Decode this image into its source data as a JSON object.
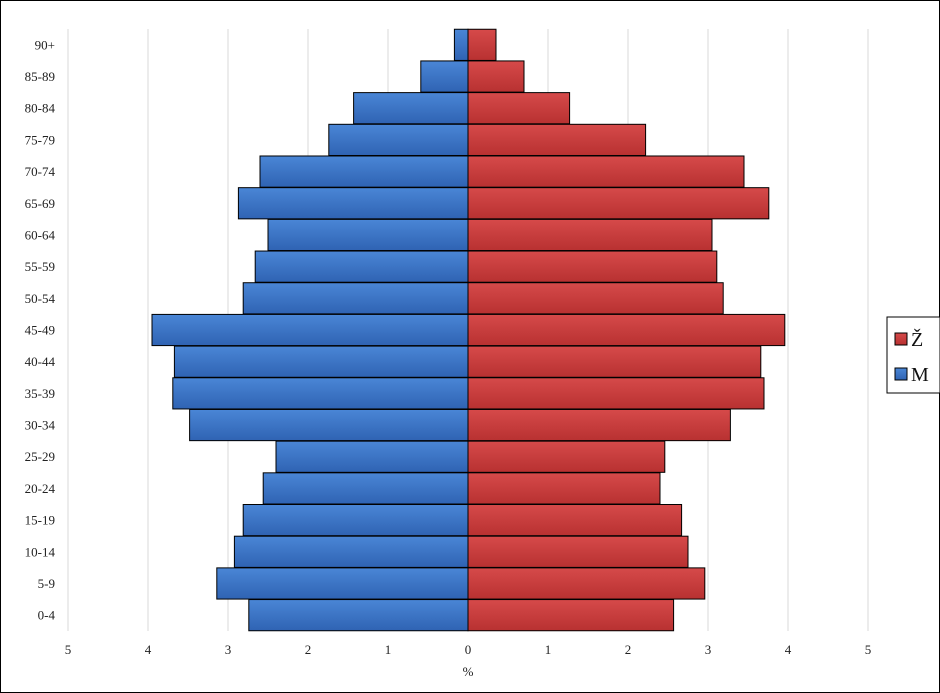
{
  "chart_data": {
    "type": "bar",
    "orientation": "horizontal",
    "subtype": "population-pyramid",
    "title": "",
    "xlabel": "%",
    "ylabel": "",
    "xlim": [
      -5,
      5
    ],
    "x_ticks": [
      -5,
      -4,
      -3,
      -2,
      -1,
      0,
      1,
      2,
      3,
      4,
      5
    ],
    "x_tick_labels": [
      "5",
      "4",
      "3",
      "2",
      "1",
      "0",
      "1",
      "2",
      "3",
      "4",
      "5"
    ],
    "categories": [
      "0-4",
      "5-9",
      "10-14",
      "15-19",
      "20-24",
      "25-29",
      "30-34",
      "35-39",
      "40-44",
      "45-49",
      "50-54",
      "55-59",
      "60-64",
      "65-69",
      "70-74",
      "75-79",
      "80-84",
      "85-89",
      "90+"
    ],
    "series": [
      {
        "name": "M",
        "side": "left",
        "color": "#3A72C4",
        "values": [
          2.74,
          3.14,
          2.92,
          2.81,
          2.56,
          2.4,
          3.48,
          3.69,
          3.67,
          3.95,
          2.81,
          2.66,
          2.5,
          2.87,
          2.6,
          1.74,
          1.43,
          0.59,
          0.17
        ]
      },
      {
        "name": "Ž",
        "side": "right",
        "color": "#C93A3A",
        "values": [
          2.57,
          2.96,
          2.75,
          2.67,
          2.4,
          2.46,
          3.28,
          3.7,
          3.66,
          3.96,
          3.19,
          3.11,
          3.05,
          3.76,
          3.45,
          2.22,
          1.27,
          0.7,
          0.35
        ]
      }
    ],
    "grid": true,
    "legend_position": "right",
    "legend": [
      "Ž",
      "M"
    ]
  }
}
